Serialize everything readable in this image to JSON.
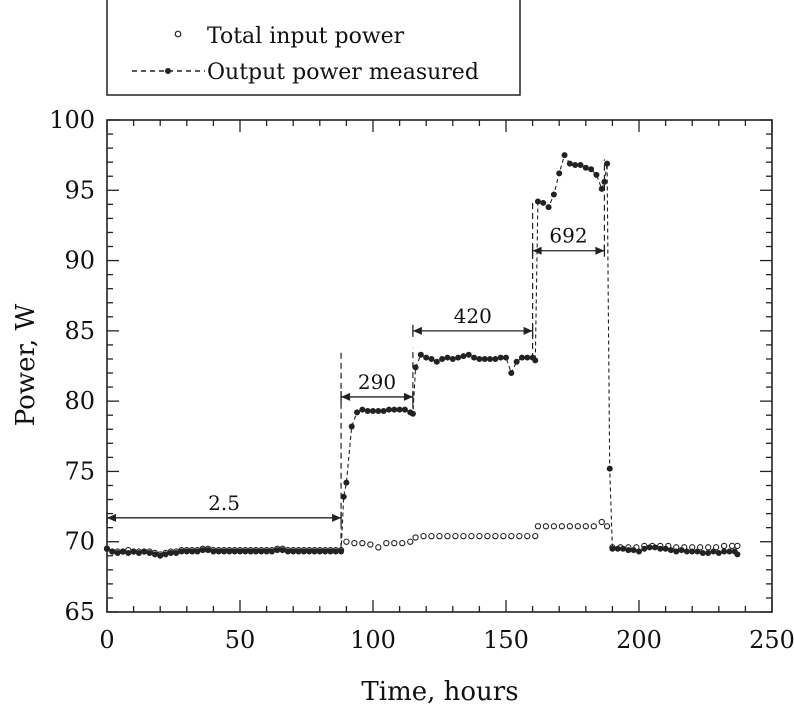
{
  "chart_data": {
    "type": "scatter",
    "title": "",
    "xlabel": "Time, hours",
    "ylabel": "Power, W",
    "xlim": [
      0,
      250
    ],
    "ylim": [
      65,
      100
    ],
    "xticks": [
      0,
      50,
      100,
      150,
      200,
      250
    ],
    "yticks": [
      65,
      70,
      75,
      80,
      85,
      90,
      95,
      100
    ],
    "grid": false,
    "legend_position": "top-left (above plot)",
    "series": [
      {
        "name": "Total input power",
        "marker": "open-circle",
        "line": "none",
        "x": [
          0,
          2,
          4,
          6,
          8,
          10,
          12,
          14,
          16,
          18,
          20,
          22,
          24,
          26,
          28,
          30,
          32,
          34,
          36,
          38,
          40,
          42,
          44,
          46,
          48,
          50,
          52,
          54,
          56,
          58,
          60,
          62,
          64,
          66,
          68,
          70,
          72,
          74,
          76,
          78,
          80,
          82,
          84,
          86,
          88,
          90,
          93,
          96,
          99,
          102,
          105,
          108,
          111,
          114,
          116,
          119,
          122,
          125,
          128,
          131,
          134,
          137,
          140,
          143,
          146,
          149,
          152,
          155,
          158,
          161,
          162,
          165,
          168,
          171,
          174,
          177,
          180,
          183,
          186,
          188,
          190,
          193,
          196,
          199,
          202,
          205,
          208,
          211,
          214,
          217,
          220,
          223,
          226,
          229,
          232,
          235,
          237
        ],
        "y": [
          69.5,
          69.3,
          69.3,
          69.3,
          69.4,
          69.3,
          69.3,
          69.3,
          69.3,
          69.2,
          69.1,
          69.2,
          69.3,
          69.3,
          69.4,
          69.4,
          69.4,
          69.4,
          69.5,
          69.5,
          69.4,
          69.4,
          69.4,
          69.4,
          69.4,
          69.4,
          69.4,
          69.4,
          69.4,
          69.4,
          69.4,
          69.4,
          69.5,
          69.5,
          69.4,
          69.4,
          69.4,
          69.4,
          69.4,
          69.4,
          69.4,
          69.4,
          69.4,
          69.4,
          69.4,
          70.0,
          69.9,
          69.9,
          69.8,
          69.6,
          69.9,
          69.9,
          69.9,
          70.0,
          70.3,
          70.4,
          70.4,
          70.4,
          70.4,
          70.4,
          70.4,
          70.4,
          70.4,
          70.4,
          70.4,
          70.4,
          70.4,
          70.4,
          70.4,
          70.4,
          71.1,
          71.1,
          71.1,
          71.1,
          71.1,
          71.1,
          71.1,
          71.1,
          71.4,
          71.1,
          69.6,
          69.6,
          69.6,
          69.6,
          69.7,
          69.7,
          69.7,
          69.7,
          69.6,
          69.6,
          69.6,
          69.6,
          69.6,
          69.6,
          69.7,
          69.7,
          69.7
        ]
      },
      {
        "name": "Output power measured",
        "marker": "filled-circle",
        "line": "dashed",
        "x": [
          0,
          2,
          4,
          6,
          8,
          10,
          12,
          14,
          16,
          18,
          20,
          22,
          24,
          26,
          28,
          30,
          32,
          34,
          36,
          38,
          40,
          42,
          44,
          46,
          48,
          50,
          52,
          54,
          56,
          58,
          60,
          62,
          64,
          66,
          68,
          70,
          72,
          74,
          76,
          78,
          80,
          82,
          84,
          86,
          88,
          89,
          90,
          92,
          94,
          96,
          98,
          100,
          102,
          104,
          106,
          108,
          110,
          112,
          114,
          115,
          116,
          118,
          120,
          122,
          124,
          126,
          128,
          130,
          132,
          134,
          136,
          138,
          140,
          142,
          144,
          146,
          148,
          150,
          152,
          154,
          156,
          158,
          160,
          161,
          162,
          164,
          166,
          168,
          170,
          172,
          174,
          176,
          178,
          180,
          182,
          184,
          186,
          187,
          188,
          189,
          190,
          192,
          194,
          196,
          198,
          200,
          202,
          204,
          206,
          208,
          210,
          212,
          214,
          216,
          218,
          220,
          222,
          224,
          226,
          228,
          230,
          232,
          234,
          236,
          237
        ],
        "y": [
          69.5,
          69.3,
          69.2,
          69.3,
          69.2,
          69.3,
          69.2,
          69.3,
          69.2,
          69.1,
          69.0,
          69.1,
          69.2,
          69.2,
          69.3,
          69.3,
          69.3,
          69.3,
          69.4,
          69.4,
          69.3,
          69.3,
          69.3,
          69.3,
          69.3,
          69.3,
          69.3,
          69.3,
          69.3,
          69.3,
          69.3,
          69.3,
          69.4,
          69.4,
          69.3,
          69.3,
          69.3,
          69.3,
          69.3,
          69.3,
          69.3,
          69.3,
          69.3,
          69.3,
          69.3,
          73.2,
          74.2,
          78.2,
          79.2,
          79.4,
          79.3,
          79.3,
          79.3,
          79.3,
          79.4,
          79.4,
          79.4,
          79.4,
          79.2,
          79.1,
          82.4,
          83.3,
          83.1,
          83.0,
          82.8,
          83.0,
          83.1,
          83.0,
          83.1,
          83.2,
          83.3,
          83.1,
          83.0,
          83.0,
          83.0,
          83.0,
          83.1,
          83.1,
          82.0,
          82.8,
          83.1,
          83.1,
          83.1,
          82.9,
          94.2,
          94.1,
          93.8,
          94.7,
          96.2,
          97.5,
          96.9,
          96.8,
          96.8,
          96.6,
          96.5,
          96.1,
          95.1,
          95.6,
          96.9,
          75.2,
          69.5,
          69.5,
          69.5,
          69.4,
          69.4,
          69.3,
          69.5,
          69.6,
          69.6,
          69.5,
          69.5,
          69.4,
          69.3,
          69.4,
          69.3,
          69.3,
          69.3,
          69.2,
          69.2,
          69.3,
          69.2,
          69.3,
          69.3,
          69.3,
          69.1
        ]
      }
    ],
    "annotations": [
      {
        "text": "2.5",
        "x_from": 0,
        "x_to": 88,
        "y": 71.7
      },
      {
        "text": "290",
        "x_from": 88,
        "x_to": 115,
        "y": 80.3
      },
      {
        "text": "420",
        "x_from": 115,
        "x_to": 160,
        "y": 85.0
      },
      {
        "text": "692",
        "x_from": 160,
        "x_to": 187,
        "y": 90.7
      }
    ],
    "vertical_markers": [
      {
        "x": 88,
        "y_from": 69.5,
        "y_to": 83.5
      },
      {
        "x": 115,
        "y_from": 79.5,
        "y_to": 83.8
      },
      {
        "x": 160,
        "y_from": 83.0,
        "y_to": 94.3
      },
      {
        "x": 187,
        "y_from": 90.7,
        "y_to": 97.2
      }
    ]
  }
}
